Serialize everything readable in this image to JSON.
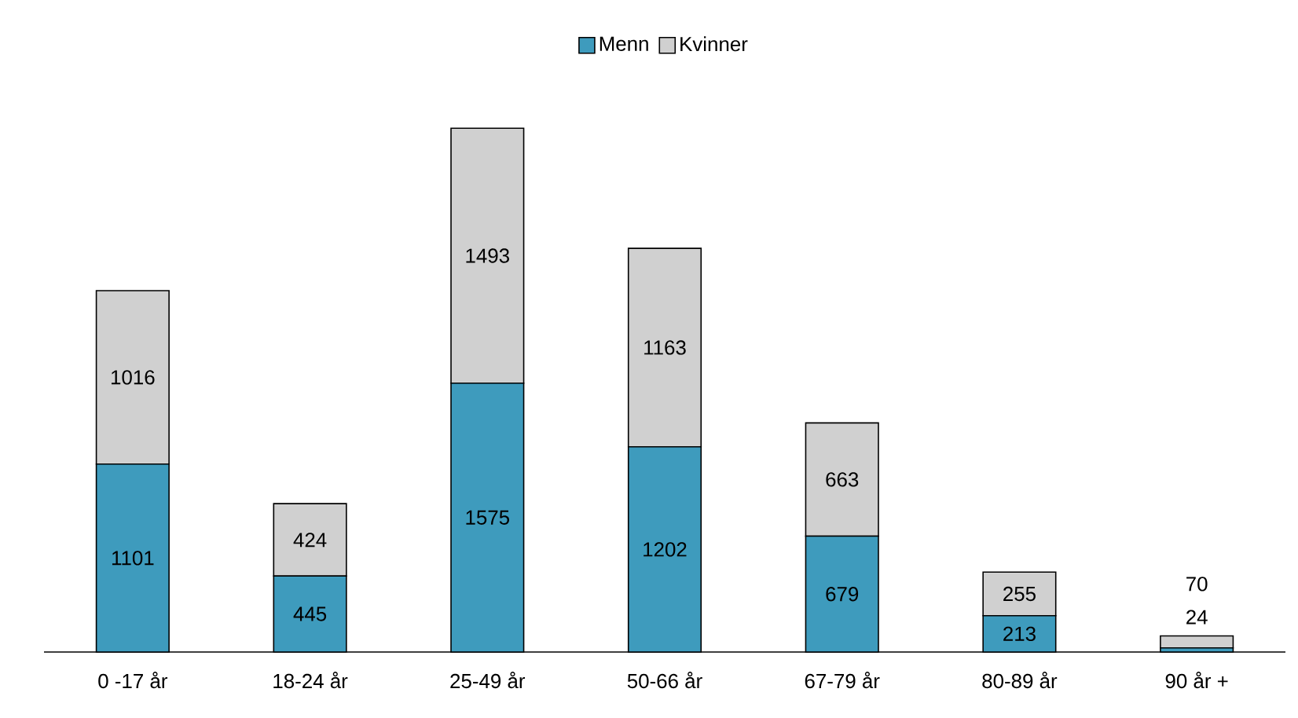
{
  "chart_data": {
    "type": "bar",
    "stacked": true,
    "data_labels": true,
    "legend": "top",
    "categories": [
      "0 -17 år",
      "18-24 år",
      "25-49 år",
      "50-66 år",
      "67-79 år",
      "80-89 år",
      "90 år +"
    ],
    "series": [
      {
        "name": "Menn",
        "color": "#3e9bbd",
        "values": [
          1101,
          445,
          1575,
          1202,
          679,
          213,
          24
        ]
      },
      {
        "name": "Kvinner",
        "color": "#d0d0d0",
        "values": [
          1016,
          424,
          1493,
          1163,
          663,
          255,
          70
        ]
      }
    ]
  }
}
